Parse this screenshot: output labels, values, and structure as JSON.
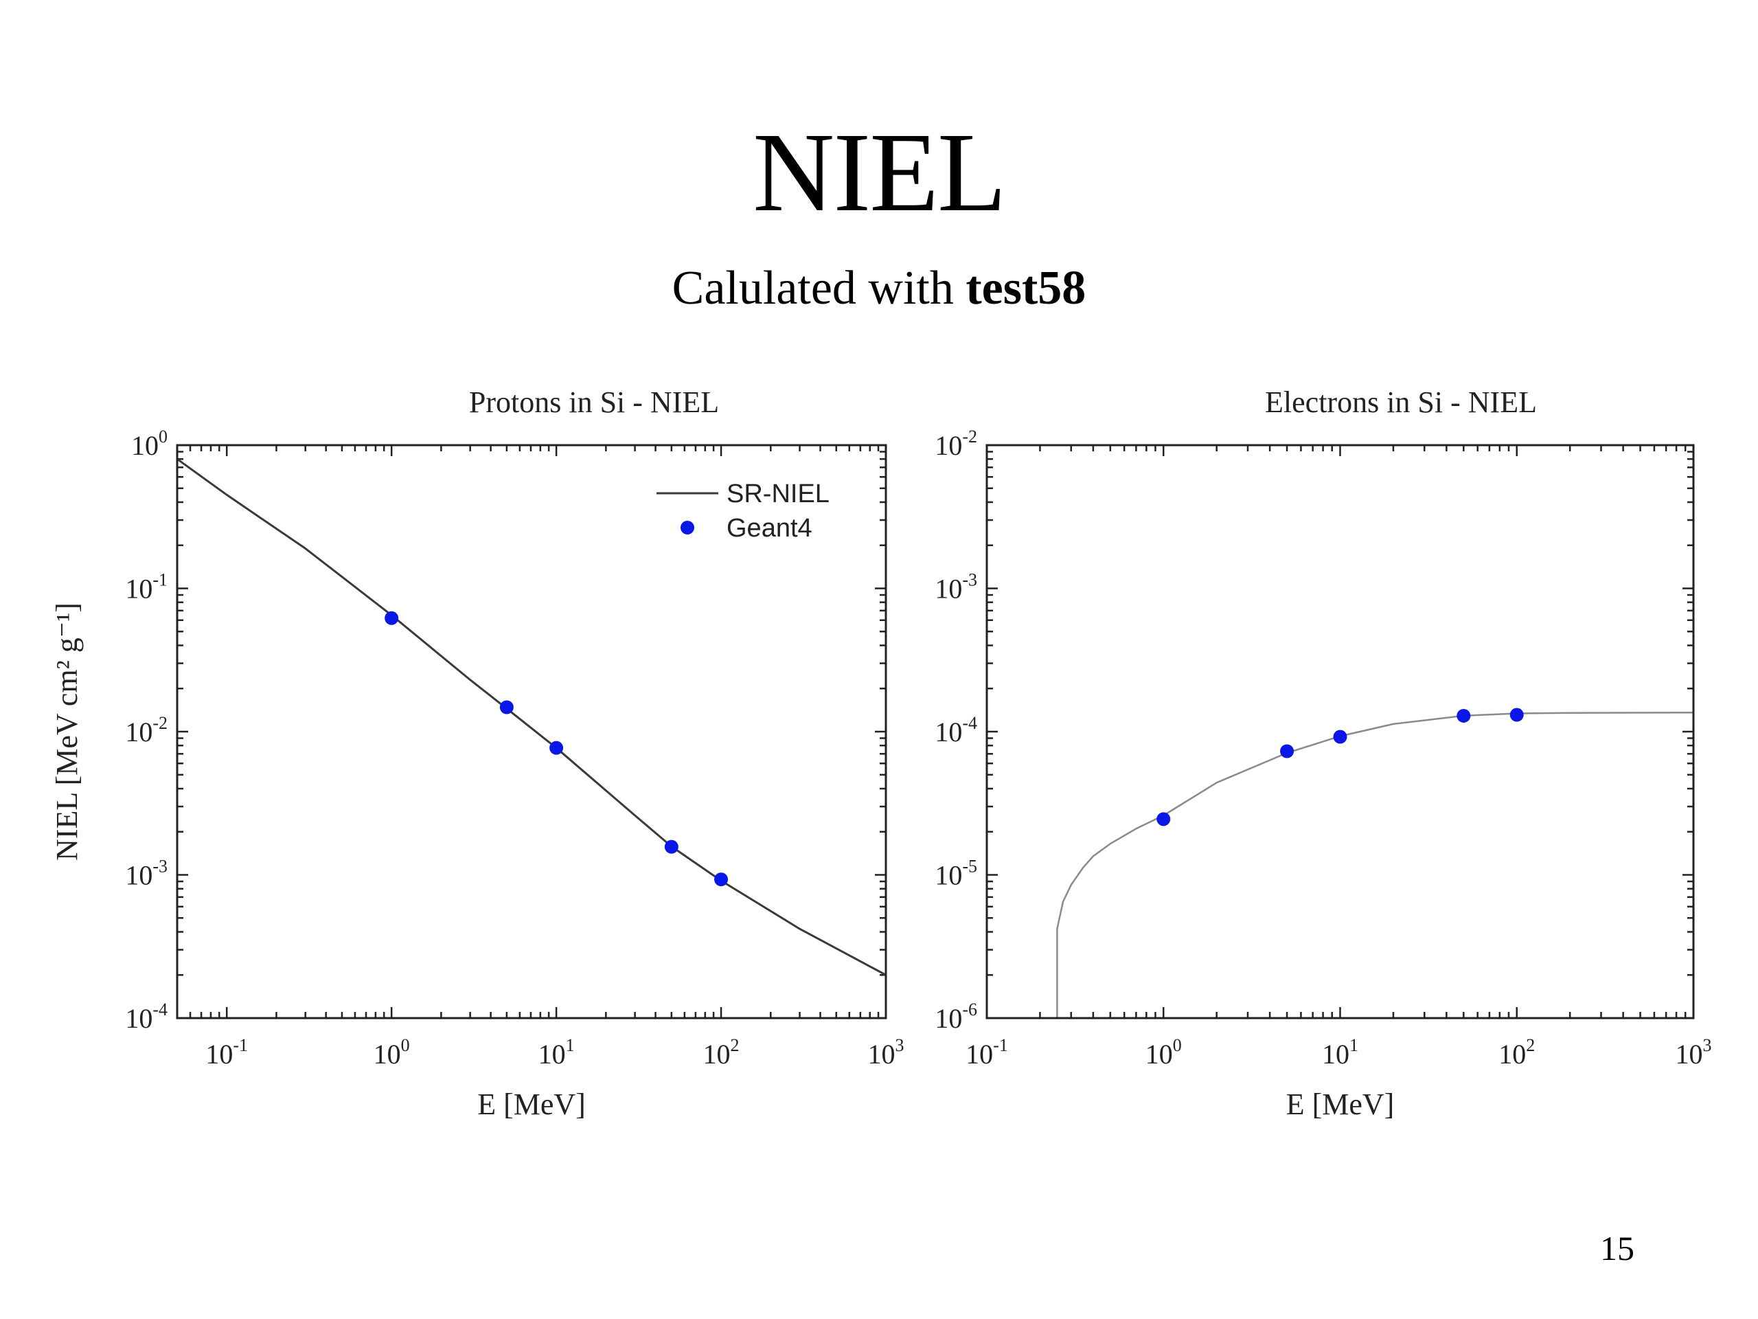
{
  "slide": {
    "title": "NIEL",
    "subtitle_prefix": "Calulated with ",
    "subtitle_bold": "test58",
    "page_number": "15"
  },
  "colors": {
    "curve": "#3a3a3a",
    "points": "#0a17e6",
    "axis": "#222222"
  },
  "chart_data": [
    {
      "type": "line",
      "title": "Protons in Si - NIEL",
      "xlabel": "E [MeV]",
      "ylabel": "NIEL [MeV cm² g⁻¹]",
      "x_scale": "log",
      "y_scale": "log",
      "xlim": [
        0.05,
        1000
      ],
      "ylim": [
        0.0001,
        1
      ],
      "x_ticks": [
        0.1,
        1,
        10,
        100,
        1000
      ],
      "y_ticks": [
        0.0001,
        0.001,
        0.01,
        0.1,
        1
      ],
      "legend_position": "top-right",
      "series": [
        {
          "name": "SR-NIEL",
          "style": "line",
          "x": [
            0.05,
            0.1,
            0.3,
            1,
            3,
            5,
            10,
            30,
            50,
            100,
            300,
            1000
          ],
          "y": [
            0.8,
            0.45,
            0.19,
            0.065,
            0.023,
            0.0145,
            0.0077,
            0.0026,
            0.00158,
            0.00091,
            0.00042,
            0.0002
          ]
        },
        {
          "name": "Geant4",
          "style": "points",
          "x": [
            1,
            5,
            10,
            50,
            100
          ],
          "y": [
            0.062,
            0.0148,
            0.0077,
            0.00157,
            0.00093
          ]
        }
      ]
    },
    {
      "type": "line",
      "title": "Electrons in Si - NIEL",
      "xlabel": "E [MeV]",
      "ylabel": "",
      "x_scale": "log",
      "y_scale": "log",
      "xlim": [
        0.1,
        1000
      ],
      "ylim": [
        1e-06,
        0.01
      ],
      "x_ticks": [
        0.1,
        1,
        10,
        100,
        1000
      ],
      "y_ticks": [
        1e-06,
        1e-05,
        0.0001,
        0.001,
        0.01
      ],
      "series": [
        {
          "style": "line",
          "x": [
            0.25,
            0.25,
            0.27,
            0.3,
            0.35,
            0.4,
            0.5,
            0.7,
            1,
            2,
            5,
            10,
            20,
            50,
            100,
            200,
            1000
          ],
          "y": [
            1e-06,
            4.2e-06,
            6.5e-06,
            8.5e-06,
            1.12e-05,
            1.35e-05,
            1.65e-05,
            2.1e-05,
            2.6e-05,
            4.4e-05,
            7.1e-05,
            9.3e-05,
            0.000113,
            0.000129,
            0.000134,
            0.000135,
            0.000136
          ]
        },
        {
          "style": "points",
          "x": [
            1,
            5,
            10,
            50,
            100
          ],
          "y": [
            2.45e-05,
            7.3e-05,
            9.2e-05,
            0.000129,
            0.000131
          ]
        }
      ]
    }
  ]
}
